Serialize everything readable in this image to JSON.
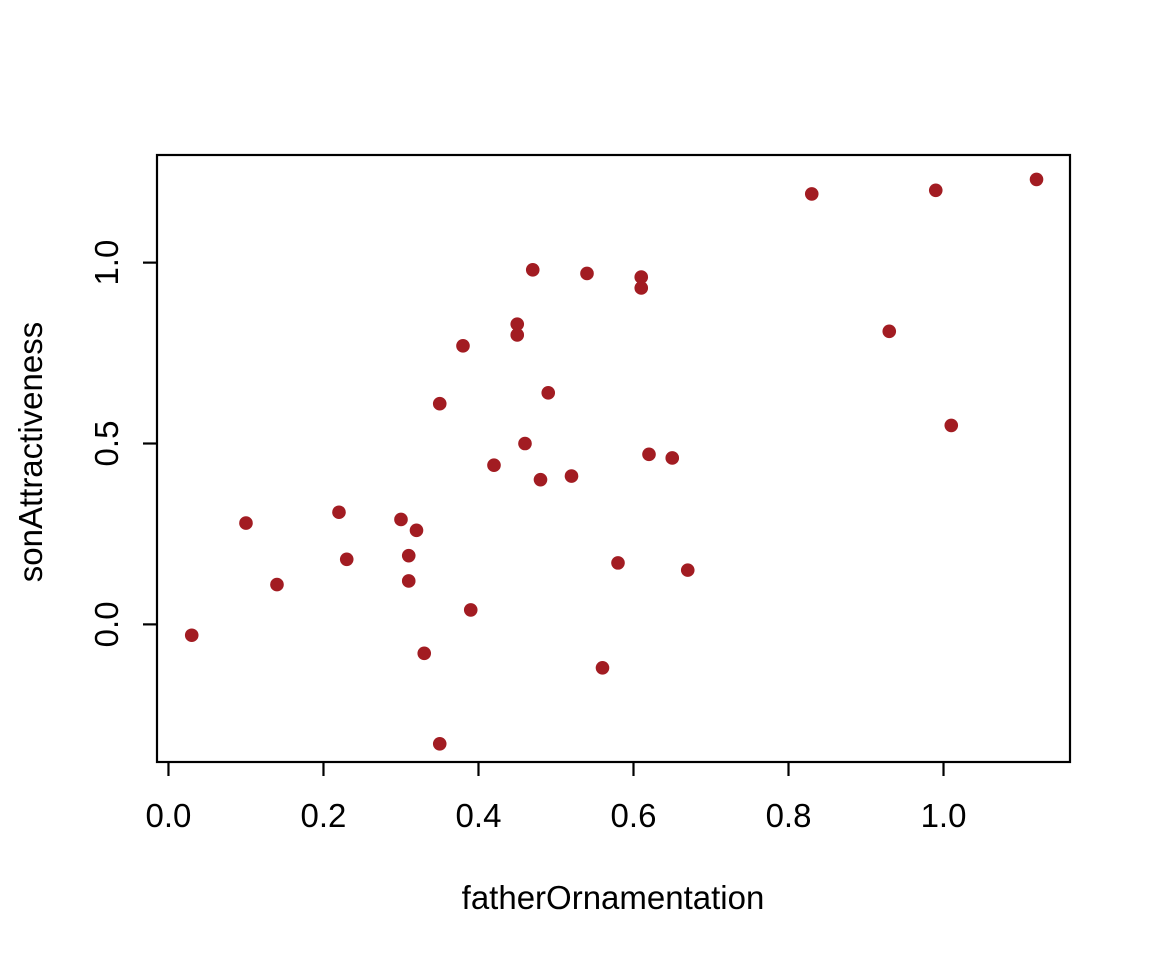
{
  "chart_data": {
    "type": "scatter",
    "title": "",
    "xlabel": "fatherOrnamentation",
    "ylabel": "sonAttractiveness",
    "x_ticks": [
      0.0,
      0.2,
      0.4,
      0.6,
      0.8,
      1.0
    ],
    "x_tick_labels": [
      "0.0",
      "0.2",
      "0.4",
      "0.6",
      "0.8",
      "1.0"
    ],
    "y_ticks": [
      0.0,
      0.5,
      1.0
    ],
    "y_tick_labels": [
      "0.0",
      "0.5",
      "1.0"
    ],
    "xlim": [
      -0.0148,
      1.1632
    ],
    "ylim": [
      -0.3804,
      1.2975
    ],
    "grid": false,
    "legend": "none",
    "point_color": "#A21C22",
    "frame_color": "#000000",
    "background_color": "#ffffff",
    "points": [
      {
        "x": 0.03,
        "y": -0.03
      },
      {
        "x": 0.1,
        "y": 0.28
      },
      {
        "x": 0.14,
        "y": 0.11
      },
      {
        "x": 0.22,
        "y": 0.31
      },
      {
        "x": 0.23,
        "y": 0.18
      },
      {
        "x": 0.3,
        "y": 0.29
      },
      {
        "x": 0.31,
        "y": 0.19
      },
      {
        "x": 0.31,
        "y": 0.12
      },
      {
        "x": 0.32,
        "y": 0.26
      },
      {
        "x": 0.33,
        "y": -0.08
      },
      {
        "x": 0.35,
        "y": 0.61
      },
      {
        "x": 0.35,
        "y": -0.33
      },
      {
        "x": 0.38,
        "y": 0.77
      },
      {
        "x": 0.39,
        "y": 0.04
      },
      {
        "x": 0.42,
        "y": 0.44
      },
      {
        "x": 0.45,
        "y": 0.83
      },
      {
        "x": 0.45,
        "y": 0.8
      },
      {
        "x": 0.46,
        "y": 0.5
      },
      {
        "x": 0.47,
        "y": 0.98
      },
      {
        "x": 0.48,
        "y": 0.4
      },
      {
        "x": 0.49,
        "y": 0.64
      },
      {
        "x": 0.52,
        "y": 0.41
      },
      {
        "x": 0.54,
        "y": 0.97
      },
      {
        "x": 0.56,
        "y": -0.12
      },
      {
        "x": 0.58,
        "y": 0.17
      },
      {
        "x": 0.61,
        "y": 0.96
      },
      {
        "x": 0.61,
        "y": 0.93
      },
      {
        "x": 0.62,
        "y": 0.47
      },
      {
        "x": 0.65,
        "y": 0.46
      },
      {
        "x": 0.67,
        "y": 0.15
      },
      {
        "x": 0.83,
        "y": 1.19
      },
      {
        "x": 0.93,
        "y": 0.81
      },
      {
        "x": 0.99,
        "y": 1.2
      },
      {
        "x": 1.01,
        "y": 0.55
      },
      {
        "x": 1.12,
        "y": 1.23
      }
    ]
  }
}
